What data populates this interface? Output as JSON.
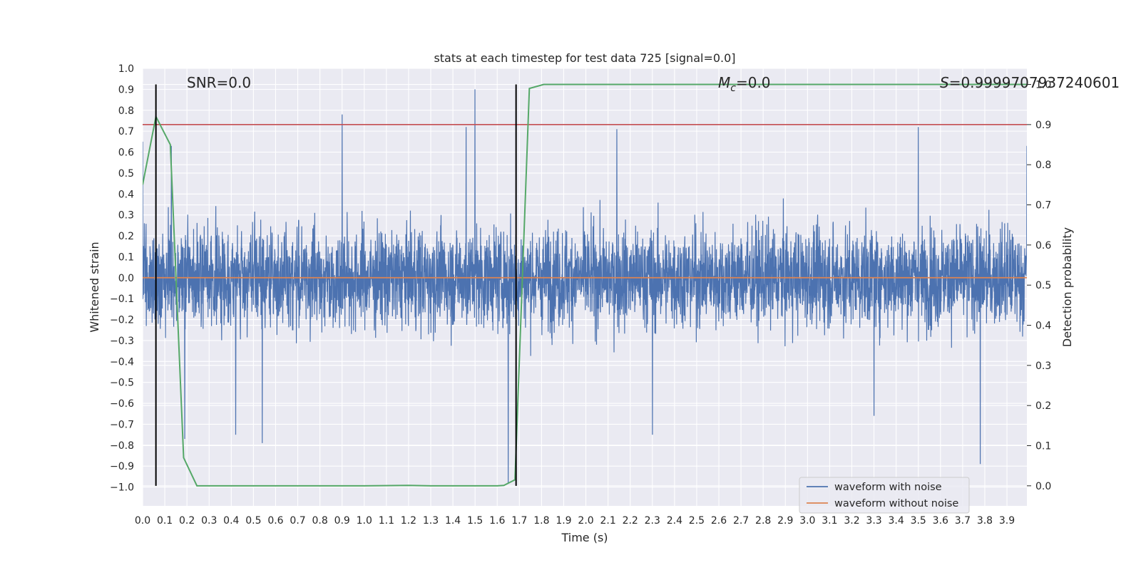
{
  "chart_data": {
    "type": "line",
    "title": "stats at each timestep for test data 725 [signal=0.0]",
    "xlabel": "Time (s)",
    "ylabel": "Whitened strain",
    "y2label": "Detection probability",
    "xlim": [
      0.0,
      3.99
    ],
    "ylim": [
      -1.09,
      1.0
    ],
    "y2lim": [
      -0.05,
      1.04
    ],
    "x_ticks": [
      "0.0",
      "0.1",
      "0.2",
      "0.3",
      "0.4",
      "0.5",
      "0.6",
      "0.7",
      "0.8",
      "0.9",
      "1.0",
      "1.1",
      "1.2",
      "1.3",
      "1.4",
      "1.5",
      "1.6",
      "1.7",
      "1.8",
      "1.9",
      "2.0",
      "2.1",
      "2.2",
      "2.3",
      "2.4",
      "2.5",
      "2.6",
      "2.7",
      "2.8",
      "2.9",
      "3.0",
      "3.1",
      "3.2",
      "3.3",
      "3.4",
      "3.5",
      "3.6",
      "3.7",
      "3.8",
      "3.9"
    ],
    "y_ticks": [
      "−1.0",
      "−0.9",
      "−0.8",
      "−0.7",
      "−0.6",
      "−0.5",
      "−0.4",
      "−0.3",
      "−0.2",
      "−0.1",
      "0.0",
      "0.1",
      "0.2",
      "0.3",
      "0.4",
      "0.5",
      "0.6",
      "0.7",
      "0.8",
      "0.9",
      "1.0"
    ],
    "y2_ticks": [
      "0.0",
      "0.1",
      "0.2",
      "0.3",
      "0.4",
      "0.5",
      "0.6",
      "0.7",
      "0.8",
      "0.9",
      "1.0"
    ],
    "grid": true,
    "annotations": {
      "snr": "SNR=0.0",
      "mc_symbol": "M",
      "mc_sub": "c",
      "mc_value": "=0.0",
      "s_symbol": "S",
      "s_value": "=0.9999707937240601"
    },
    "series": [
      {
        "name": "waveform with noise",
        "color": "#4c72b0",
        "axis": "left",
        "style": "dense noise",
        "x_range": [
          0.0,
          3.99
        ],
        "typical_envelope": [
          -0.45,
          0.45
        ],
        "peaks_high": [
          [
            0.0,
            0.65
          ],
          [
            0.13,
            0.63
          ],
          [
            0.9,
            0.78
          ],
          [
            1.5,
            0.9
          ],
          [
            1.46,
            0.72
          ],
          [
            2.14,
            0.71
          ],
          [
            3.5,
            0.72
          ],
          [
            3.99,
            0.63
          ]
        ],
        "peaks_low": [
          [
            0.19,
            -0.77
          ],
          [
            0.42,
            -0.75
          ],
          [
            0.54,
            -0.79
          ],
          [
            1.65,
            -0.98
          ],
          [
            2.3,
            -0.75
          ],
          [
            3.78,
            -0.89
          ],
          [
            3.3,
            -0.66
          ]
        ]
      },
      {
        "name": "waveform without noise",
        "color": "#dd8452",
        "axis": "left",
        "x": [
          0.0,
          3.99
        ],
        "y": [
          0.0,
          0.0
        ]
      },
      {
        "color": "#55a868",
        "axis": "right",
        "x": [
          0.0,
          0.06,
          0.125,
          0.185,
          0.245,
          1.0,
          1.2,
          1.3,
          1.6,
          1.63,
          1.68,
          1.745,
          1.81,
          3.99
        ],
        "y": [
          0.75,
          0.92,
          0.85,
          0.07,
          0.0,
          0.0,
          0.001,
          0.0,
          0.0,
          0.001,
          0.015,
          0.99,
          1.0,
          1.0
        ]
      }
    ],
    "hlines": [
      {
        "y2": 0.9,
        "color": "#c44e52",
        "axis": "right"
      }
    ],
    "vlines": [
      {
        "x": 0.06,
        "color": "#000000",
        "y2_range": [
          0.0,
          1.0
        ]
      },
      {
        "x": 1.685,
        "color": "#000000",
        "y2_range": [
          0.0,
          1.0
        ]
      }
    ],
    "legend": {
      "position": "lower right",
      "entries": [
        "waveform with noise",
        "waveform without noise"
      ]
    }
  }
}
